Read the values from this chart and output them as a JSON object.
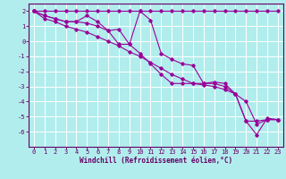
{
  "xlabel": "Windchill (Refroidissement éolien,°C)",
  "background_color": "#b2eded",
  "line_color": "#990099",
  "grid_color": "#ffffff",
  "series": [
    [
      2,
      2,
      2,
      2,
      2,
      2,
      2,
      2,
      2,
      2,
      2,
      2,
      2,
      2,
      2,
      2,
      2,
      2,
      2,
      2,
      2,
      2,
      2,
      2
    ],
    [
      2,
      1.7,
      1.5,
      1.3,
      1.3,
      1.7,
      1.3,
      0.7,
      -0.2,
      -0.2,
      2.0,
      1.4,
      -0.8,
      -1.2,
      -1.5,
      -1.6,
      -2.8,
      -2.7,
      -2.8,
      -3.5,
      -5.3,
      -6.2,
      -5.1,
      -5.2
    ],
    [
      2,
      1.7,
      1.5,
      1.3,
      1.3,
      1.2,
      1.0,
      0.7,
      0.8,
      -0.2,
      -0.8,
      -1.5,
      -2.2,
      -2.8,
      -2.8,
      -2.8,
      -2.8,
      -2.8,
      -3.0,
      -3.5,
      -5.3,
      -5.3,
      -5.2,
      -5.2
    ],
    [
      2,
      1.5,
      1.3,
      1.0,
      0.8,
      0.6,
      0.3,
      0.0,
      -0.3,
      -0.7,
      -1.0,
      -1.4,
      -1.8,
      -2.2,
      -2.5,
      -2.8,
      -2.9,
      -3.0,
      -3.2,
      -3.5,
      -4.0,
      -5.5,
      -5.2,
      -5.2
    ]
  ],
  "x_ticks": [
    0,
    1,
    2,
    3,
    4,
    5,
    6,
    7,
    8,
    9,
    10,
    11,
    12,
    13,
    14,
    15,
    16,
    17,
    18,
    19,
    20,
    21,
    22,
    23
  ],
  "ylim": [
    -7,
    2.5
  ],
  "xlim": [
    -0.5,
    23.5
  ],
  "yticks": [
    -6,
    -5,
    -4,
    -3,
    -2,
    -1,
    0,
    1,
    2
  ],
  "tick_fontsize": 5.0,
  "label_fontsize": 5.5
}
